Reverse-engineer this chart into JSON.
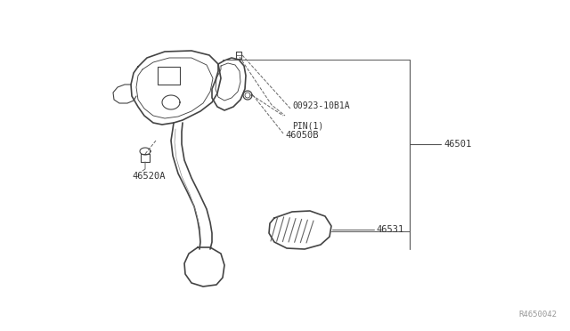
{
  "bg_color": "#ffffff",
  "line_color": "#444444",
  "text_color": "#333333",
  "watermark": "R4650042",
  "label_46501": "46501",
  "label_pin": "00923-10B1A",
  "label_pin2": "PIN(1)",
  "label_46050B": "46050B",
  "label_46520A": "46520A",
  "label_46531": "46531"
}
